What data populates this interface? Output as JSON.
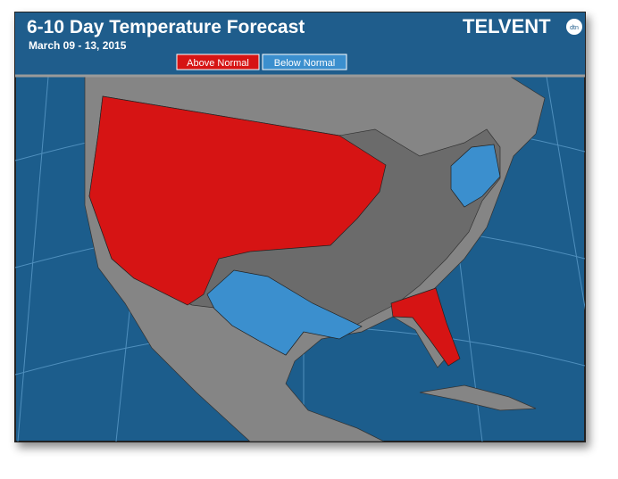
{
  "header": {
    "title": "6-10 Day Temperature Forecast",
    "subtitle": "March 09 - 13, 2015"
  },
  "legend": {
    "items": [
      "Above Normal",
      "Below Normal"
    ]
  },
  "logo": {
    "name": "TELVENT",
    "badge": "dtn"
  }
}
